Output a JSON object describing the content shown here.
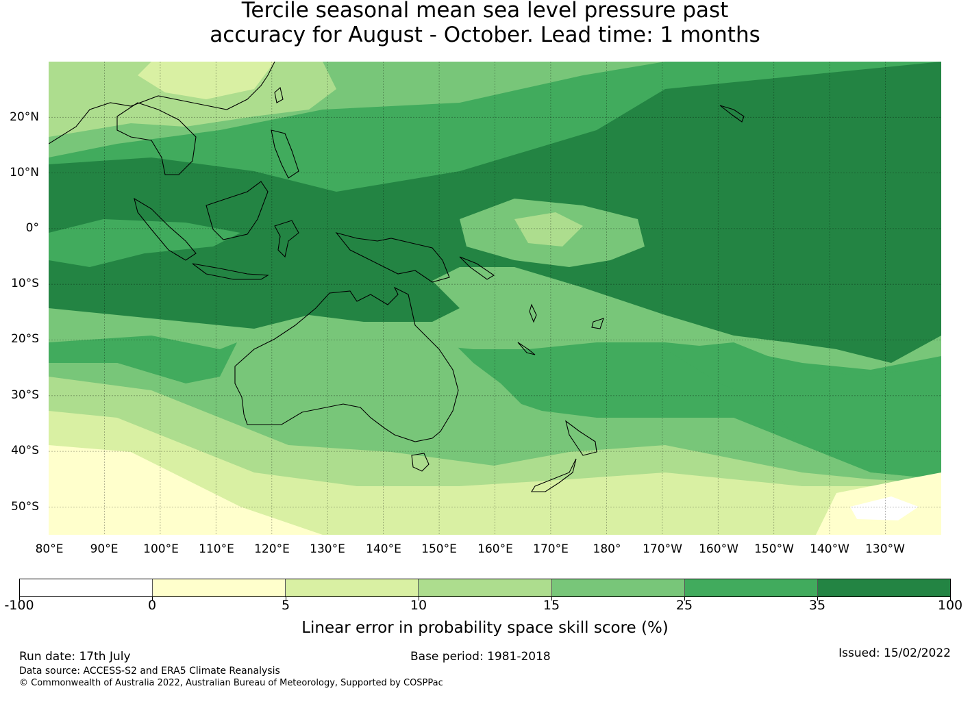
{
  "title": {
    "line1": "Tercile seasonal mean sea level pressure past",
    "line2": "accuracy for August - October. Lead time: 1 months"
  },
  "map": {
    "lon_labels": [
      "80°E",
      "90°E",
      "100°E",
      "110°E",
      "120°E",
      "130°E",
      "140°E",
      "150°E",
      "160°E",
      "170°E",
      "180°",
      "170°W",
      "160°W",
      "150°W",
      "140°W",
      "130°W"
    ],
    "lat_labels": [
      "20°N",
      "10°N",
      "0°",
      "10°S",
      "20°S",
      "30°S",
      "40°S",
      "50°S"
    ],
    "lon_range": [
      80,
      240
    ],
    "lat_range": [
      -55,
      30
    ],
    "gridlines": true
  },
  "colorbar": {
    "ticks": [
      "-100",
      "0",
      "5",
      "10",
      "15",
      "25",
      "35",
      "100"
    ],
    "colors": [
      "#ffffff",
      "#ffffcc",
      "#d9f0a3",
      "#addd8e",
      "#78c679",
      "#41ab5d",
      "#238443"
    ],
    "label": "Linear error in probability space skill score (%)"
  },
  "footer": {
    "run_date": "Run date: 17th July",
    "base_period": "Base period: 1981-2018",
    "issued": "Issued: 15/02/2022",
    "data_source": "Data source: ACCESS-S2 and ERA5 Climate Reanalysis",
    "copyright": "© Commonwealth of Australia 2022, Australian Bureau of Meteorology, Supported by COSPPac"
  }
}
